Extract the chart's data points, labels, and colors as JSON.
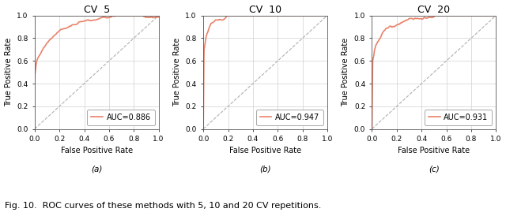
{
  "titles": [
    "CV  5",
    "CV  10",
    "CV  20"
  ],
  "subtitles": [
    "(a)",
    "(b)",
    "(c)"
  ],
  "auc_values": [
    0.886,
    0.947,
    0.931
  ],
  "xlabel": "False Positive Rate",
  "ylabel": "True Positive Rate",
  "roc_color": "#E8836A",
  "diag_color": "#B0B0B0",
  "caption": "Fig. 10.  ROC curves of these methods with 5, 10 and 20 CV repetitions.",
  "figsize": [
    6.4,
    2.74
  ],
  "dpi": 100,
  "background_color": "#ffffff",
  "grid_color": "#D0D0D0",
  "tick_labels": [
    "0.0",
    "0.2",
    "0.4",
    "0.6",
    "0.8",
    "1.0"
  ],
  "tick_values": [
    0.0,
    0.2,
    0.4,
    0.6,
    0.8,
    1.0
  ],
  "roc_cv5_fpr": [
    0.0,
    0.01,
    0.02,
    0.03,
    0.05,
    0.07,
    0.1,
    0.14,
    0.18,
    0.22,
    0.28,
    0.35,
    0.42,
    0.5,
    0.6,
    0.7,
    0.8,
    0.9,
    1.0
  ],
  "roc_cv5_tpr": [
    0.46,
    0.56,
    0.61,
    0.64,
    0.68,
    0.73,
    0.78,
    0.82,
    0.87,
    0.9,
    0.92,
    0.94,
    0.96,
    0.97,
    0.98,
    0.99,
    0.995,
    1.0,
    1.0
  ],
  "roc_cv10_fpr": [
    0.0,
    0.005,
    0.01,
    0.02,
    0.03,
    0.06,
    0.1,
    0.16,
    0.2,
    0.22,
    0.3,
    0.5,
    0.6,
    0.8,
    1.0
  ],
  "roc_cv10_tpr": [
    0.0,
    0.7,
    0.72,
    0.8,
    0.84,
    0.92,
    0.95,
    0.95,
    1.0,
    1.0,
    1.0,
    1.0,
    1.0,
    1.0,
    1.0
  ],
  "roc_cv20_fpr": [
    0.0,
    0.005,
    0.01,
    0.015,
    0.02,
    0.03,
    0.05,
    0.07,
    0.09,
    0.12,
    0.16,
    0.2,
    0.25,
    0.3,
    0.4,
    0.5,
    0.7,
    1.0
  ],
  "roc_cv20_tpr": [
    0.0,
    0.6,
    0.63,
    0.65,
    0.7,
    0.74,
    0.78,
    0.82,
    0.86,
    0.89,
    0.91,
    0.93,
    0.95,
    0.96,
    0.97,
    0.99,
    1.0,
    1.0
  ],
  "title_fontsize": 9,
  "label_fontsize": 7,
  "tick_fontsize": 6.5,
  "legend_fontsize": 7,
  "caption_fontsize": 8
}
